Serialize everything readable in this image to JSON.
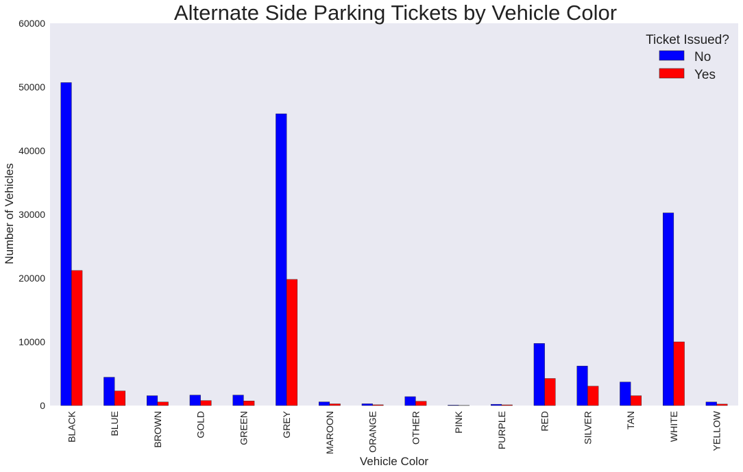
{
  "chart_data": {
    "type": "bar",
    "title": "Alternate Side Parking Tickets by Vehicle Color",
    "xlabel": "Vehicle Color",
    "ylabel": "Number of Vehicles",
    "ylim": [
      0,
      60000
    ],
    "yticks": [
      0,
      10000,
      20000,
      30000,
      40000,
      50000,
      60000
    ],
    "grid": false,
    "legend": {
      "title": "Ticket Issued?",
      "placement": "top-right"
    },
    "categories": [
      "BLACK",
      "BLUE",
      "BROWN",
      "GOLD",
      "GREEN",
      "GREY",
      "MAROON",
      "ORANGE",
      "OTHER",
      "PINK",
      "PURPLE",
      "RED",
      "SILVER",
      "TAN",
      "WHITE",
      "YELLOW"
    ],
    "series": [
      {
        "name": "No",
        "color": "#0000ff",
        "values": [
          50700,
          4450,
          1550,
          1650,
          1650,
          45800,
          580,
          280,
          1400,
          70,
          200,
          9750,
          6200,
          3700,
          30250,
          560
        ]
      },
      {
        "name": "Yes",
        "color": "#ff0000",
        "values": [
          21200,
          2300,
          560,
          790,
          720,
          19800,
          270,
          120,
          680,
          30,
          110,
          4250,
          3050,
          1550,
          10000,
          230
        ]
      }
    ]
  },
  "style": {
    "plot_background": "#e9e9f2"
  }
}
